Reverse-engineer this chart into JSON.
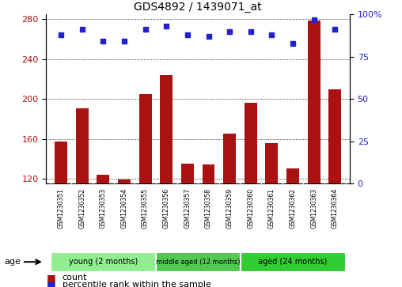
{
  "title": "GDS4892 / 1439071_at",
  "samples": [
    "GSM1230351",
    "GSM1230352",
    "GSM1230353",
    "GSM1230354",
    "GSM1230355",
    "GSM1230356",
    "GSM1230357",
    "GSM1230358",
    "GSM1230359",
    "GSM1230360",
    "GSM1230361",
    "GSM1230362",
    "GSM1230363",
    "GSM1230364"
  ],
  "counts": [
    157,
    191,
    124,
    119,
    205,
    224,
    135,
    134,
    165,
    196,
    156,
    130,
    279,
    210
  ],
  "percentiles": [
    88,
    91,
    84,
    84,
    91,
    93,
    88,
    87,
    90,
    90,
    88,
    83,
    97,
    91
  ],
  "ylim_left": [
    115,
    285
  ],
  "ylim_right": [
    0,
    100
  ],
  "yticks_left": [
    120,
    160,
    200,
    240,
    280
  ],
  "yticks_right": [
    0,
    25,
    50,
    75,
    100
  ],
  "groups": [
    {
      "label": "young (2 months)",
      "indices": [
        0,
        4
      ],
      "color": "#90EE90"
    },
    {
      "label": "middle aged (12 months)",
      "indices": [
        5,
        8
      ],
      "color": "#52C852"
    },
    {
      "label": "aged (24 months)",
      "indices": [
        9,
        13
      ],
      "color": "#32CD32"
    }
  ],
  "bar_color": "#AA1111",
  "dot_color": "#2222CC",
  "grid_color": "#000000",
  "bg_color": "#FFFFFF",
  "sample_bg": "#CCCCCC",
  "age_label": "age",
  "legend_count": "count",
  "legend_percentile": "percentile rank within the sample"
}
